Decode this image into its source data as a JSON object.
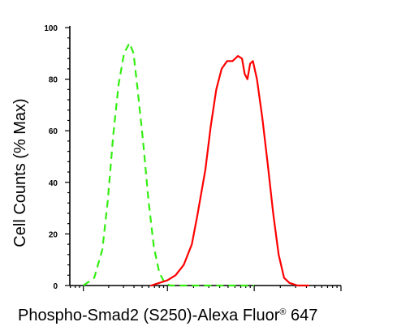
{
  "chart_data": {
    "type": "line",
    "xlabel": "Phospho-Smad2 (S250)-Alexa Fluor",
    "xlabel_superscript": "®",
    "xlabel_suffix": " 647",
    "ylabel": "Cell Counts (% Max)",
    "ylim": [
      0,
      100
    ],
    "y_ticks": [
      "0",
      "20",
      "40",
      "60",
      "80",
      "100"
    ],
    "x_scale": "log",
    "x_tick_labels": [],
    "grid": false,
    "legend": "none",
    "series": [
      {
        "style": "dashed",
        "color": "#33ee11",
        "points": [
          [
            0.05,
            0
          ],
          [
            0.09,
            3
          ],
          [
            0.12,
            14
          ],
          [
            0.14,
            33
          ],
          [
            0.16,
            58
          ],
          [
            0.18,
            78
          ],
          [
            0.2,
            90
          ],
          [
            0.22,
            94
          ],
          [
            0.235,
            90
          ],
          [
            0.25,
            76
          ],
          [
            0.27,
            56
          ],
          [
            0.29,
            33
          ],
          [
            0.31,
            15
          ],
          [
            0.33,
            5
          ],
          [
            0.35,
            1
          ],
          [
            0.37,
            0
          ],
          [
            0.6,
            0
          ],
          [
            0.68,
            0
          ]
        ]
      },
      {
        "style": "solid",
        "color": "#ff0000",
        "points": [
          [
            0.3,
            0
          ],
          [
            0.33,
            1
          ],
          [
            0.36,
            2
          ],
          [
            0.39,
            4
          ],
          [
            0.42,
            8
          ],
          [
            0.45,
            16
          ],
          [
            0.47,
            27
          ],
          [
            0.5,
            45
          ],
          [
            0.52,
            62
          ],
          [
            0.54,
            76
          ],
          [
            0.56,
            84
          ],
          [
            0.58,
            87
          ],
          [
            0.6,
            87
          ],
          [
            0.62,
            89
          ],
          [
            0.635,
            88
          ],
          [
            0.645,
            82
          ],
          [
            0.655,
            80
          ],
          [
            0.665,
            86
          ],
          [
            0.675,
            87
          ],
          [
            0.69,
            80
          ],
          [
            0.71,
            65
          ],
          [
            0.73,
            47
          ],
          [
            0.75,
            28
          ],
          [
            0.77,
            12
          ],
          [
            0.79,
            3
          ],
          [
            0.81,
            1
          ],
          [
            0.84,
            0
          ],
          [
            0.88,
            0
          ]
        ]
      }
    ]
  }
}
